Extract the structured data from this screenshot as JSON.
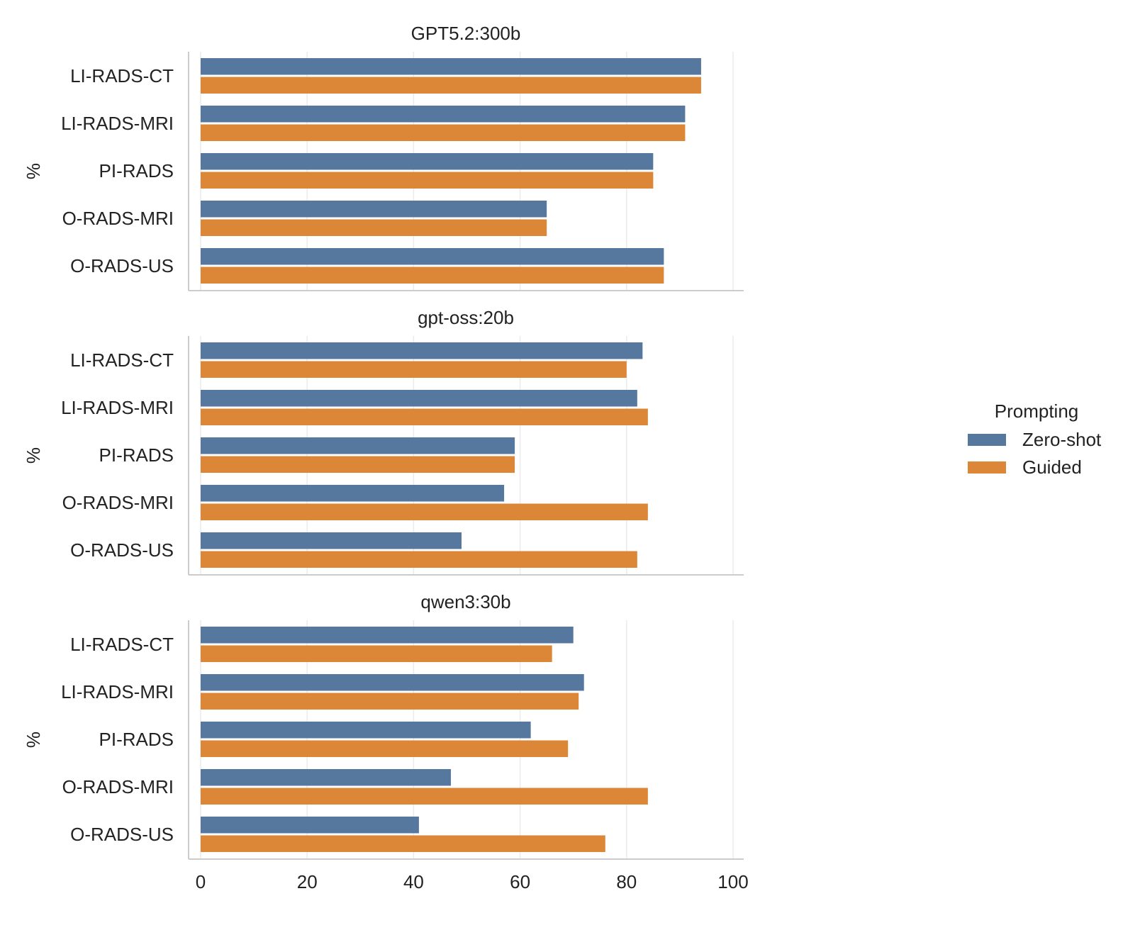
{
  "chart_data": {
    "type": "bar",
    "orientation": "horizontal",
    "categories": [
      "LI-RADS-CT",
      "LI-RADS-MRI",
      "PI-RADS",
      "O-RADS-MRI",
      "O-RADS-US"
    ],
    "ylabel": "%",
    "xlim": [
      0,
      100
    ],
    "xticks": [
      "0",
      "20",
      "40",
      "60",
      "80",
      "100"
    ],
    "grid": true,
    "legend": {
      "title": "Prompting",
      "placement": "right",
      "entries": [
        {
          "name": "Zero-shot",
          "color": "#56789e"
        },
        {
          "name": "Guided",
          "color": "#dc8637"
        }
      ]
    },
    "panels": [
      {
        "title": "GPT5.2:300b",
        "series": [
          {
            "name": "Zero-shot",
            "values": [
              94,
              91,
              85,
              65,
              87
            ]
          },
          {
            "name": "Guided",
            "values": [
              94,
              91,
              85,
              65,
              87
            ]
          }
        ]
      },
      {
        "title": "gpt-oss:20b",
        "series": [
          {
            "name": "Zero-shot",
            "values": [
              83,
              82,
              59,
              57,
              49
            ]
          },
          {
            "name": "Guided",
            "values": [
              80,
              84,
              59,
              84,
              82
            ]
          }
        ]
      },
      {
        "title": "qwen3:30b",
        "series": [
          {
            "name": "Zero-shot",
            "values": [
              70,
              72,
              62,
              47,
              41
            ]
          },
          {
            "name": "Guided",
            "values": [
              66,
              71,
              69,
              84,
              76
            ]
          }
        ]
      }
    ]
  }
}
